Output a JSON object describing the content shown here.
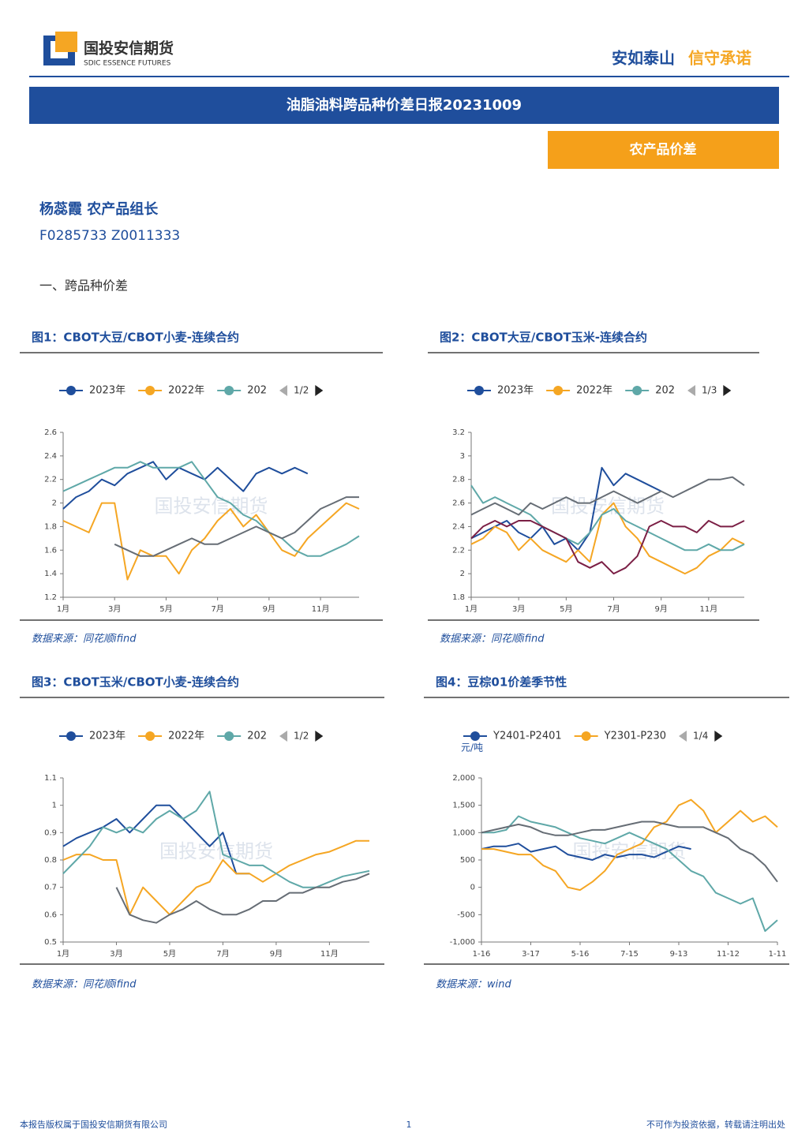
{
  "header": {
    "company": "国投安信期货",
    "company_en": "SDIC ESSENCE FUTURES",
    "slogan": [
      "安如泰山",
      "信守承诺"
    ]
  },
  "report_title": "油脂油料跨品种价差日报20231009",
  "tag": "农产品价差",
  "author": {
    "name": "杨蕊霞 农产品组长",
    "ids": "F0285733 Z0011333"
  },
  "section": "一、跨品种价差",
  "watermark": "国投安信期货",
  "chart_data": [
    {
      "type": "line",
      "title": "图1：CBOT大豆/CBOT小麦-连续合约",
      "source": "数据来源：同花顺ifind",
      "legend_page": "1/2",
      "categories": [
        "1月",
        null,
        null,
        null,
        "3月",
        null,
        null,
        null,
        "5月",
        null,
        null,
        null,
        "7月",
        null,
        null,
        null,
        "9月",
        null,
        null,
        null,
        "11月",
        null,
        null,
        null
      ],
      "ylim": [
        1.2,
        2.6
      ],
      "yticks": [
        1.2,
        1.4,
        1.6,
        1.8,
        2,
        2.2,
        2.4,
        2.6
      ],
      "series": [
        {
          "name": "2023年",
          "color": "#1f4e9c",
          "values": [
            1.95,
            2.05,
            2.1,
            2.2,
            2.15,
            2.25,
            2.3,
            2.35,
            2.2,
            2.3,
            2.25,
            2.2,
            2.3,
            2.2,
            2.1,
            2.25,
            2.3,
            2.25,
            2.3,
            2.25,
            null,
            null,
            null,
            null
          ]
        },
        {
          "name": "2022年",
          "color": "#f5a623",
          "values": [
            1.85,
            1.8,
            1.75,
            2.0,
            2.0,
            1.35,
            1.6,
            1.55,
            1.55,
            1.4,
            1.6,
            1.7,
            1.85,
            1.95,
            1.8,
            1.9,
            1.75,
            1.6,
            1.55,
            1.7,
            1.8,
            1.9,
            2.0,
            1.95
          ]
        },
        {
          "name": "202",
          "color": "#5fa8a8",
          "values": [
            2.1,
            2.15,
            2.2,
            2.25,
            2.3,
            2.3,
            2.35,
            2.3,
            2.3,
            2.3,
            2.35,
            2.2,
            2.05,
            2.0,
            1.9,
            1.85,
            1.75,
            1.7,
            1.6,
            1.55,
            1.55,
            1.6,
            1.65,
            1.72
          ]
        },
        {
          "color": "#666d75",
          "values": [
            null,
            null,
            null,
            null,
            1.65,
            1.6,
            1.55,
            1.55,
            1.6,
            1.65,
            1.7,
            1.65,
            1.65,
            1.7,
            1.75,
            1.8,
            1.75,
            1.7,
            1.75,
            1.85,
            1.95,
            2.0,
            2.05,
            2.05
          ]
        }
      ]
    },
    {
      "type": "line",
      "title": "图2：CBOT大豆/CBOT玉米-连续合约",
      "source": "数据来源：同花顺ifind",
      "legend_page": "1/3",
      "categories": [
        "1月",
        null,
        null,
        null,
        "3月",
        null,
        null,
        null,
        "5月",
        null,
        null,
        null,
        "7月",
        null,
        null,
        null,
        "9月",
        null,
        null,
        null,
        "11月",
        null,
        null,
        null
      ],
      "ylim": [
        1.8,
        3.2
      ],
      "yticks": [
        1.8,
        2,
        2.2,
        2.4,
        2.6,
        2.8,
        3,
        3.2
      ],
      "series": [
        {
          "name": "2023年",
          "color": "#1f4e9c",
          "values": [
            2.3,
            2.35,
            2.4,
            2.45,
            2.35,
            2.3,
            2.4,
            2.25,
            2.3,
            2.2,
            2.35,
            2.9,
            2.75,
            2.85,
            2.8,
            2.75,
            2.7,
            null,
            null,
            null,
            null,
            null,
            null,
            null
          ]
        },
        {
          "name": "2022年",
          "color": "#f5a623",
          "values": [
            2.25,
            2.3,
            2.4,
            2.35,
            2.2,
            2.3,
            2.2,
            2.15,
            2.1,
            2.2,
            2.1,
            2.5,
            2.6,
            2.4,
            2.3,
            2.15,
            2.1,
            2.05,
            2.0,
            2.05,
            2.15,
            2.2,
            2.3,
            2.25
          ]
        },
        {
          "name": "202",
          "color": "#5fa8a8",
          "values": [
            2.75,
            2.6,
            2.65,
            2.6,
            2.55,
            2.5,
            2.4,
            2.35,
            2.3,
            2.25,
            2.35,
            2.5,
            2.55,
            2.45,
            2.4,
            2.35,
            2.3,
            2.25,
            2.2,
            2.2,
            2.25,
            2.2,
            2.2,
            2.25
          ]
        },
        {
          "color": "#666d75",
          "values": [
            2.5,
            2.55,
            2.6,
            2.55,
            2.5,
            2.6,
            2.55,
            2.6,
            2.65,
            2.6,
            2.6,
            2.65,
            2.7,
            2.65,
            2.6,
            2.65,
            2.7,
            2.65,
            2.7,
            2.75,
            2.8,
            2.8,
            2.82,
            2.75
          ]
        },
        {
          "color": "#7b1f45",
          "values": [
            2.3,
            2.4,
            2.45,
            2.4,
            2.45,
            2.45,
            2.4,
            2.35,
            2.3,
            2.1,
            2.05,
            2.1,
            2.0,
            2.05,
            2.15,
            2.4,
            2.45,
            2.4,
            2.4,
            2.35,
            2.45,
            2.4,
            2.4,
            2.45
          ]
        }
      ]
    },
    {
      "type": "line",
      "title": "图3：CBOT玉米/CBOT小麦-连续合约",
      "source": "数据来源：同花顺ifind",
      "legend_page": "1/2",
      "categories": [
        "1月",
        null,
        null,
        null,
        "3月",
        null,
        null,
        null,
        "5月",
        null,
        null,
        null,
        "7月",
        null,
        null,
        null,
        "9月",
        null,
        null,
        null,
        "11月",
        null,
        null,
        null
      ],
      "ylim": [
        0.5,
        1.1
      ],
      "yticks": [
        0.5,
        0.6,
        0.7,
        0.8,
        0.9,
        1,
        1.1
      ],
      "series": [
        {
          "name": "2023年",
          "color": "#1f4e9c",
          "values": [
            0.85,
            0.88,
            0.9,
            0.92,
            0.95,
            0.9,
            0.95,
            1.0,
            1.0,
            0.95,
            0.9,
            0.85,
            0.9,
            0.75,
            0.75,
            null,
            null,
            null,
            null,
            null,
            null,
            null,
            null,
            null
          ]
        },
        {
          "name": "2022年",
          "color": "#f5a623",
          "values": [
            0.8,
            0.82,
            0.82,
            0.8,
            0.8,
            0.6,
            0.7,
            0.65,
            0.6,
            0.65,
            0.7,
            0.72,
            0.8,
            0.75,
            0.75,
            0.72,
            0.75,
            0.78,
            0.8,
            0.82,
            0.83,
            0.85,
            0.87,
            0.87
          ]
        },
        {
          "name": "202",
          "color": "#5fa8a8",
          "values": [
            0.75,
            0.8,
            0.85,
            0.92,
            0.9,
            0.92,
            0.9,
            0.95,
            0.98,
            0.95,
            0.98,
            1.05,
            0.82,
            0.8,
            0.78,
            0.78,
            0.75,
            0.72,
            0.7,
            0.7,
            0.72,
            0.74,
            0.75,
            0.76
          ]
        },
        {
          "color": "#666d75",
          "values": [
            null,
            null,
            null,
            null,
            0.7,
            0.6,
            0.58,
            0.57,
            0.6,
            0.62,
            0.65,
            0.62,
            0.6,
            0.6,
            0.62,
            0.65,
            0.65,
            0.68,
            0.68,
            0.7,
            0.7,
            0.72,
            0.73,
            0.75
          ]
        }
      ]
    },
    {
      "type": "line",
      "title": "图4：豆棕01价差季节性",
      "source": "数据来源：wind",
      "legend_page": "1/4",
      "y_unit": "元/吨",
      "categories": [
        "1-16",
        null,
        null,
        null,
        "3-17",
        null,
        null,
        null,
        "5-16",
        null,
        null,
        null,
        "7-15",
        null,
        null,
        null,
        "9-13",
        null,
        null,
        null,
        "11-12",
        null,
        null,
        null,
        "1-11"
      ],
      "ylim": [
        -1000,
        2000
      ],
      "yticks": [
        {
          "value": -1000,
          "label": "-1,000"
        },
        -500,
        0,
        500,
        {
          "value": 1000,
          "label": "1,000"
        },
        {
          "value": 1500,
          "label": "1,500"
        },
        {
          "value": 2000,
          "label": "2,000"
        }
      ],
      "series": [
        {
          "name": "Y2401-P2401",
          "color": "#1f4e9c",
          "values": [
            700,
            750,
            750,
            800,
            650,
            700,
            750,
            600,
            550,
            500,
            600,
            550,
            600,
            600,
            550,
            650,
            750,
            700,
            null,
            null,
            null,
            null,
            null,
            null,
            null
          ]
        },
        {
          "name": "Y2301-P230",
          "color": "#f5a623",
          "values": [
            700,
            700,
            650,
            600,
            600,
            400,
            300,
            0,
            -50,
            100,
            300,
            600,
            700,
            800,
            1100,
            1200,
            1500,
            1600,
            1400,
            1000,
            1200,
            1400,
            1200,
            1300,
            1100
          ]
        },
        {
          "color": "#5fa8a8",
          "values": [
            1000,
            1000,
            1050,
            1300,
            1200,
            1150,
            1100,
            1000,
            900,
            850,
            800,
            900,
            1000,
            900,
            800,
            700,
            500,
            300,
            200,
            -100,
            -200,
            -300,
            -200,
            -800,
            -600
          ]
        },
        {
          "color": "#666d75",
          "values": [
            1000,
            1050,
            1100,
            1150,
            1100,
            1000,
            950,
            950,
            1000,
            1050,
            1050,
            1100,
            1150,
            1200,
            1200,
            1150,
            1100,
            1100,
            1100,
            1000,
            900,
            700,
            600,
            400,
            100
          ]
        }
      ]
    }
  ],
  "footer": {
    "left": "本报告版权属于国投安信期货有限公司",
    "page": "1",
    "right": "不可作为投资依据，转载请注明出处"
  }
}
